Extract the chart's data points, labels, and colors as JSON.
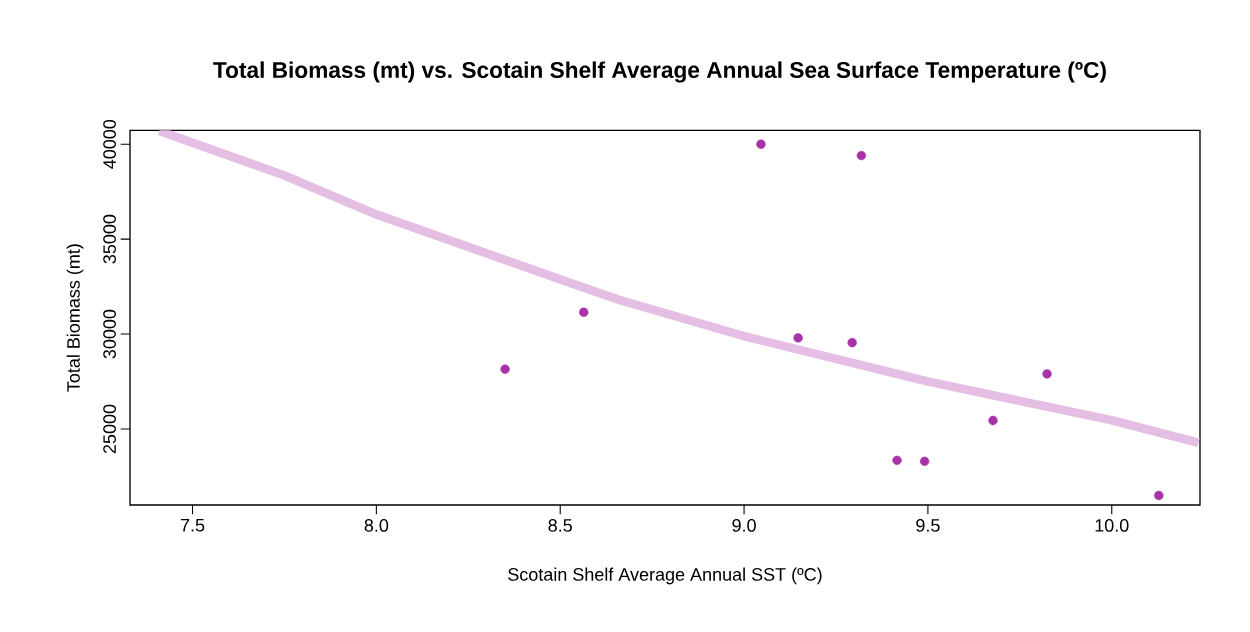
{
  "chart_data": {
    "type": "scatter",
    "title": "Total Biomass (mt) vs. Scotain Shelf Average Annual Sea Surface Temperature (ºC)",
    "xlabel": "Scotain Shelf Average Annual SST (ºC)",
    "ylabel": "Total Biomass (mt)",
    "xlim": [
      7.33,
      10.24
    ],
    "ylim": [
      21000,
      40730
    ],
    "xticks": [
      7.5,
      {
        "value": 8,
        "label": "8.0"
      },
      8.5,
      {
        "value": 9,
        "label": "9.0"
      },
      9.5,
      {
        "value": 10,
        "label": "10.0"
      }
    ],
    "yticks": [
      25000,
      30000,
      35000,
      40000
    ],
    "series": [
      {
        "type": "line",
        "color": "#e4bfe3",
        "x": [
          7.41,
          7.75,
          8.0,
          8.5,
          8.66,
          9.0,
          9.5,
          10.0,
          10.236
        ],
        "values": [
          40700,
          38350,
          36300,
          32880,
          31800,
          29890,
          27500,
          25460,
          24280
        ]
      },
      {
        "color": "#a832a8",
        "marker": "circle",
        "x": [
          8.35,
          8.564,
          9.046,
          9.319,
          9.147,
          9.294,
          9.416,
          9.491,
          9.677,
          9.824,
          10.128
        ],
        "values": [
          28150,
          31150,
          40000,
          39400,
          29800,
          29550,
          23350,
          23300,
          25450,
          27900,
          21500
        ]
      }
    ]
  }
}
